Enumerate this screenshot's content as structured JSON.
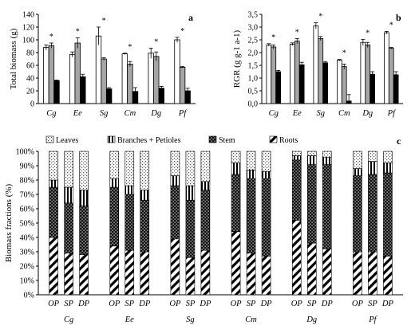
{
  "chart_data": [
    {
      "panel": "a",
      "type": "bar",
      "ylabel": "Total biomass (g)",
      "ylim": [
        0,
        140
      ],
      "yticks": [
        0,
        20,
        40,
        60,
        80,
        100,
        120,
        140
      ],
      "categories": [
        "Cg",
        "Ee",
        "Sg",
        "Cm",
        "Dg",
        "Pf"
      ],
      "series": [
        {
          "fill": "white",
          "values": [
            88,
            77,
            106,
            78,
            79,
            100
          ],
          "errors": [
            4,
            4,
            14,
            1,
            8,
            4
          ]
        },
        {
          "fill": "grey",
          "values": [
            91,
            95,
            70,
            62,
            74,
            57
          ],
          "errors": [
            4,
            8,
            2,
            4,
            7,
            1
          ]
        },
        {
          "fill": "black",
          "values": [
            36,
            42,
            23,
            19,
            24,
            20
          ],
          "errors": [
            1,
            4,
            2,
            6,
            3,
            4
          ]
        }
      ],
      "annotations": [
        "*",
        "*",
        "*",
        "*",
        "*",
        "*"
      ]
    },
    {
      "panel": "b",
      "type": "bar",
      "ylabel": "RGR (g g-1 a-1)",
      "ylim": [
        0,
        3.5
      ],
      "yticks": [
        "0,0",
        "0,5",
        "1,0",
        "1,5",
        "2,0",
        "2,5",
        "3,0",
        "3,5"
      ],
      "categories": [
        "Cg",
        "Ee",
        "Sg",
        "Cm",
        "Dg",
        "Pf"
      ],
      "series": [
        {
          "fill": "white",
          "values": [
            2.3,
            2.33,
            3.05,
            1.7,
            2.4,
            2.78
          ],
          "errors": [
            0.05,
            0.05,
            0.12,
            0.03,
            0.12,
            0.05
          ]
        },
        {
          "fill": "grey",
          "values": [
            2.22,
            2.45,
            2.55,
            1.45,
            2.3,
            2.17
          ],
          "errors": [
            0.08,
            0.1,
            0.08,
            0.1,
            0.1,
            0.03
          ]
        },
        {
          "fill": "black",
          "values": [
            1.25,
            1.52,
            1.6,
            0.1,
            1.15,
            1.13
          ],
          "errors": [
            0.05,
            0.1,
            0.05,
            0.25,
            0.1,
            0.12
          ]
        }
      ],
      "annotations": [
        "*",
        "*",
        "*",
        "*",
        "*",
        "*"
      ]
    },
    {
      "panel": "c",
      "type": "bar",
      "stacked": true,
      "ylabel": "Biomass fractions (%)",
      "ylim": [
        0,
        100
      ],
      "yticks": [
        "0%",
        "10%",
        "20%",
        "30%",
        "40%",
        "50%",
        "60%",
        "70%",
        "80%",
        "90%",
        "100%"
      ],
      "legend": [
        "Leaves",
        "Branches + Petioles",
        "Stem",
        "Roots"
      ],
      "subcategories": [
        "OP",
        "SP",
        "DP"
      ],
      "categories": [
        "Cg",
        "Ee",
        "Sg",
        "Cm",
        "Dg",
        "Pf"
      ],
      "roots": [
        [
          40,
          29,
          28
        ],
        [
          34,
          31,
          30
        ],
        [
          39,
          26,
          31
        ],
        [
          44,
          29,
          27
        ],
        [
          52,
          36,
          32
        ],
        [
          30,
          30,
          27
        ]
      ],
      "stem": [
        [
          35,
          35,
          34
        ],
        [
          41,
          39,
          36
        ],
        [
          37,
          40,
          42
        ],
        [
          40,
          52,
          54
        ],
        [
          42,
          55,
          59
        ],
        [
          53,
          54,
          58
        ]
      ],
      "branches": [
        [
          5,
          11,
          11
        ],
        [
          6,
          6,
          7
        ],
        [
          7,
          10,
          6
        ],
        [
          8,
          6,
          5
        ],
        [
          3,
          6,
          5
        ],
        [
          5,
          9,
          7
        ]
      ],
      "leaves": [
        [
          20,
          25,
          27
        ],
        [
          19,
          24,
          27
        ],
        [
          17,
          24,
          21
        ],
        [
          8,
          13,
          14
        ],
        [
          3,
          3,
          4
        ],
        [
          12,
          7,
          8
        ]
      ]
    }
  ]
}
